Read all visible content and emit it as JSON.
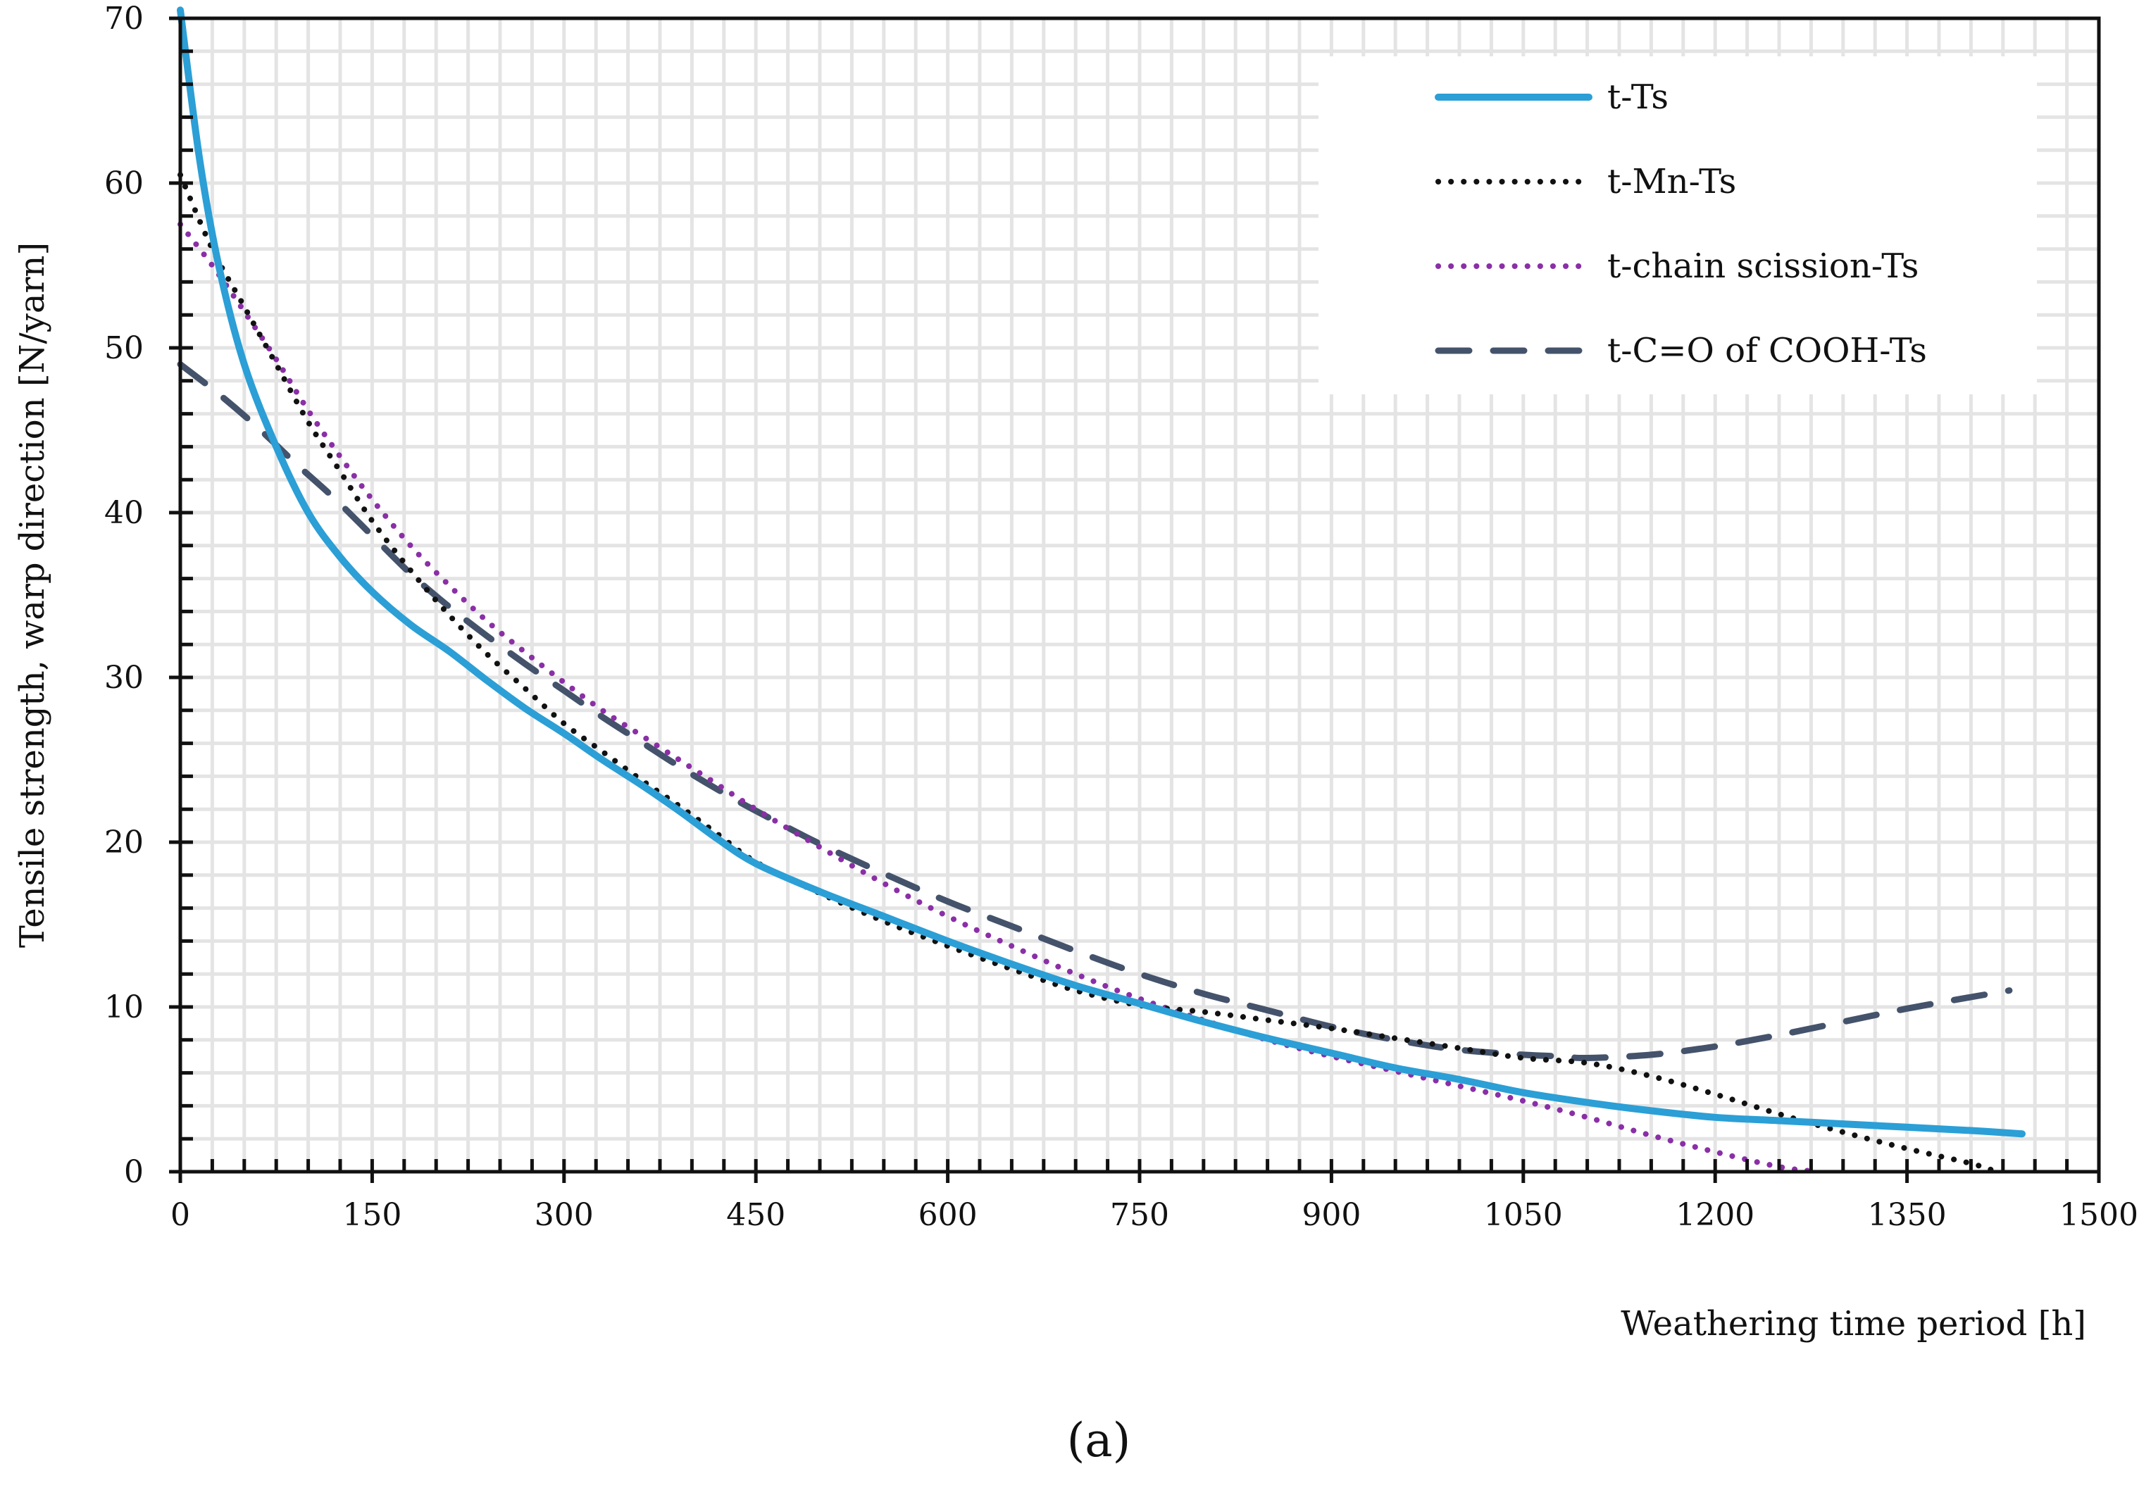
{
  "chart_data": {
    "type": "line",
    "xlabel": "Weathering time period [h]",
    "ylabel": "Tensile strength,  warp direction  [N/yarn]",
    "xlim": [
      0,
      1500
    ],
    "ylim": [
      0,
      70
    ],
    "x_ticks": [
      "0",
      "150",
      "300",
      "450",
      "600",
      "750",
      "900",
      "1050",
      "1200",
      "1350",
      "1500"
    ],
    "y_ticks": [
      "0",
      "10",
      "20",
      "30",
      "40",
      "50",
      "60",
      "70"
    ],
    "grid": true,
    "legend_position": "top-right",
    "panel_label": "(a)",
    "series": [
      {
        "name": "t-Ts",
        "color": "#2b9fd6",
        "style": "solid",
        "x": [
          0,
          15,
          30,
          50,
          75,
          100,
          125,
          150,
          180,
          210,
          240,
          270,
          300,
          330,
          360,
          390,
          420,
          450,
          500,
          550,
          600,
          650,
          700,
          750,
          800,
          850,
          900,
          950,
          1000,
          1050,
          1100,
          1150,
          1200,
          1250,
          1300,
          1350,
          1400,
          1440
        ],
        "y": [
          70.5,
          61.5,
          55.0,
          49.0,
          44.0,
          40.0,
          37.3,
          35.2,
          33.2,
          31.6,
          29.8,
          28.1,
          26.6,
          25.0,
          23.5,
          21.9,
          20.2,
          18.7,
          17.0,
          15.5,
          14.0,
          12.6,
          11.3,
          10.2,
          9.1,
          8.1,
          7.2,
          6.3,
          5.6,
          4.8,
          4.2,
          3.7,
          3.3,
          3.1,
          2.9,
          2.7,
          2.5,
          2.3
        ]
      },
      {
        "name": "t-Mn-Ts",
        "color": "#111111",
        "style": "dotted",
        "x": [
          0,
          25,
          50,
          75,
          100,
          125,
          150,
          180,
          210,
          240,
          270,
          300,
          330,
          360,
          390,
          420,
          450,
          500,
          550,
          600,
          650,
          700,
          750,
          800,
          850,
          900,
          950,
          1000,
          1050,
          1100,
          1150,
          1200,
          1250,
          1300,
          1350,
          1400,
          1420
        ],
        "y": [
          60.5,
          56.0,
          52.5,
          49.0,
          45.5,
          42.5,
          39.5,
          36.5,
          33.8,
          31.4,
          29.3,
          27.2,
          25.5,
          23.8,
          22.2,
          20.5,
          18.8,
          16.9,
          15.2,
          13.7,
          12.3,
          11.0,
          10.1,
          9.7,
          9.2,
          8.7,
          8.1,
          7.5,
          6.9,
          6.6,
          5.8,
          4.7,
          3.5,
          2.4,
          1.4,
          0.5,
          0.0
        ]
      },
      {
        "name": "t-chain scission-Ts",
        "color": "#8a2fa6",
        "style": "dotted",
        "x": [
          0,
          25,
          50,
          75,
          100,
          125,
          150,
          180,
          210,
          240,
          270,
          300,
          330,
          360,
          390,
          420,
          450,
          500,
          550,
          600,
          650,
          700,
          750,
          800,
          850,
          900,
          950,
          1000,
          1050,
          1100,
          1150,
          1200,
          1250,
          1280
        ],
        "y": [
          57.5,
          55.0,
          52.2,
          49.3,
          46.2,
          43.4,
          40.8,
          38.0,
          35.6,
          33.4,
          31.5,
          29.7,
          28.0,
          26.5,
          25.0,
          23.5,
          22.0,
          19.7,
          17.5,
          15.5,
          13.7,
          12.0,
          10.5,
          9.2,
          8.0,
          7.0,
          6.1,
          5.2,
          4.3,
          3.3,
          2.2,
          1.2,
          0.3,
          0.0
        ]
      },
      {
        "name": "t-C=O of COOH-Ts",
        "color": "#44536b",
        "style": "dashed",
        "x": [
          0,
          30,
          60,
          90,
          120,
          150,
          180,
          210,
          240,
          270,
          300,
          330,
          360,
          390,
          420,
          450,
          500,
          550,
          600,
          650,
          700,
          750,
          800,
          850,
          900,
          950,
          1000,
          1050,
          1080,
          1100,
          1150,
          1200,
          1250,
          1300,
          1350,
          1400,
          1430
        ],
        "y": [
          49.0,
          47.2,
          45.2,
          43.0,
          40.9,
          38.6,
          36.3,
          34.3,
          32.5,
          30.8,
          29.2,
          27.6,
          26.1,
          24.6,
          23.2,
          21.9,
          19.9,
          18.1,
          16.4,
          14.9,
          13.4,
          12.0,
          10.8,
          9.8,
          8.8,
          8.0,
          7.4,
          7.1,
          7.0,
          6.9,
          7.1,
          7.6,
          8.3,
          9.1,
          9.9,
          10.6,
          11.0
        ]
      }
    ]
  }
}
